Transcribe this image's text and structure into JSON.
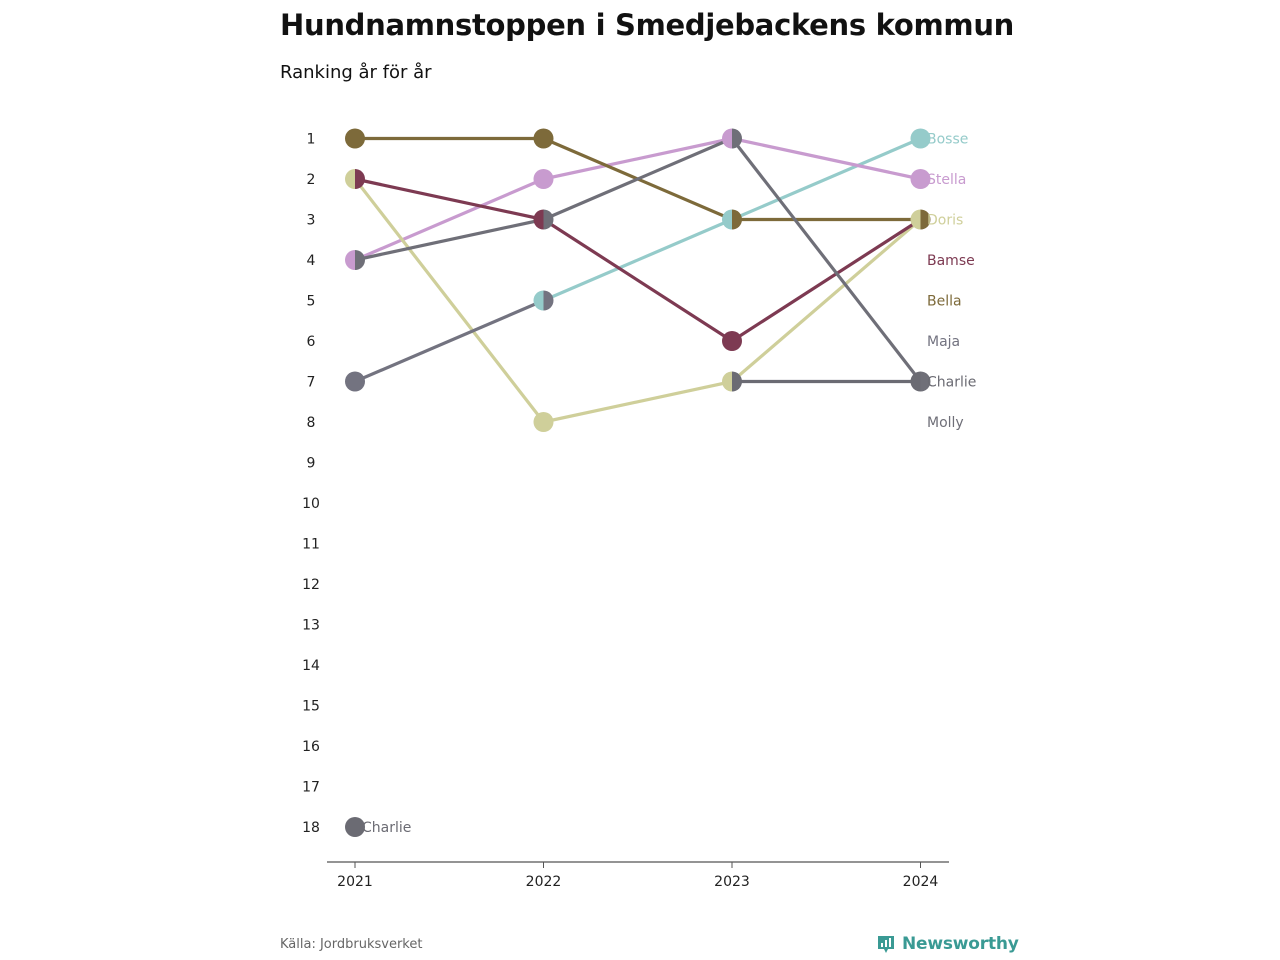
{
  "title": "Hundnamnstoppen i Smedjebackens kommun",
  "subtitle": "Ranking år för år",
  "source": "Källa: Jordbruksverket",
  "brand": {
    "name": "Newsworthy",
    "icon": "newsworthy-logo-icon",
    "color": "#3a9a94"
  },
  "chart_data": {
    "type": "line",
    "subtype": "bump",
    "x": [
      "2021",
      "2022",
      "2023",
      "2024"
    ],
    "y_axis": {
      "ticks": [
        1,
        2,
        3,
        4,
        5,
        6,
        7,
        8,
        9,
        10,
        11,
        12,
        13,
        14,
        15,
        16,
        17,
        18
      ],
      "reversed": true,
      "range": [
        1,
        18
      ]
    },
    "grid": false,
    "legend": "right end labels",
    "series": [
      {
        "name": "Bosse",
        "color": "#95cbca",
        "values": [
          null,
          5,
          3,
          1
        ]
      },
      {
        "name": "Stella",
        "color": "#c89bcf",
        "values": [
          4,
          2,
          1,
          2
        ]
      },
      {
        "name": "Doris",
        "color": "#cfcf9a",
        "values": [
          2,
          8,
          7,
          3
        ]
      },
      {
        "name": "Bamse",
        "color": "#7d3a52",
        "values": [
          2,
          3,
          6,
          3
        ]
      },
      {
        "name": "Bella",
        "color": "#7d6a3a",
        "values": [
          1,
          1,
          3,
          3
        ]
      },
      {
        "name": "Maja",
        "color": "#737380",
        "values": [
          7,
          5,
          null,
          null
        ]
      },
      {
        "name": "Charlie",
        "color": "#6b6b73",
        "values": [
          18,
          null,
          7,
          7
        ]
      },
      {
        "name": "Molly",
        "color": "#6f6f78",
        "values": [
          4,
          3,
          1,
          7
        ]
      }
    ],
    "end_labels": [
      {
        "text": "Bosse",
        "rank": 1,
        "color": "#95cbca"
      },
      {
        "text": "Stella",
        "rank": 2,
        "color": "#c89bcf"
      },
      {
        "text": "Doris",
        "rank": 3,
        "color": "#cfcf9a"
      },
      {
        "text": "Bamse",
        "rank": 4,
        "color": "#7d3a52"
      },
      {
        "text": "Bella",
        "rank": 5,
        "color": "#7d6a3a"
      },
      {
        "text": "Maja",
        "rank": 6,
        "color": "#737380"
      },
      {
        "text": "Charlie",
        "rank": 7,
        "color": "#6b6b73"
      },
      {
        "text": "Molly",
        "rank": 8,
        "color": "#6f6f78"
      }
    ],
    "start_label": {
      "text": "Charlie",
      "rank": 18,
      "color": "#6b6b73"
    }
  }
}
